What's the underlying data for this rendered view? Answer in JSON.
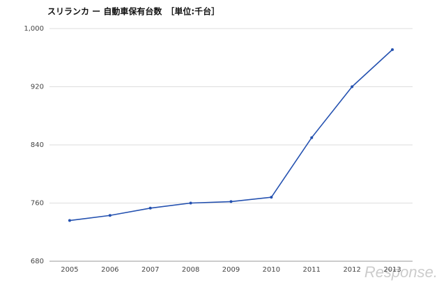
{
  "chart_data": {
    "type": "line",
    "title": "スリランカ ー 自動車保有台数　［単位:千台］",
    "categories": [
      "2005",
      "2006",
      "2007",
      "2008",
      "2009",
      "2010",
      "2011",
      "2012",
      "2013"
    ],
    "series": [
      {
        "name": "自動車保有台数",
        "color": "#2451b0",
        "values": [
          736,
          743,
          753,
          760,
          762,
          768,
          850,
          920,
          971
        ]
      }
    ],
    "ylim": [
      680,
      1000
    ],
    "yticks": [
      680,
      760,
      840,
      920,
      {
        "value": 1000,
        "label": "1,000"
      }
    ],
    "grid": true,
    "watermark": "Response."
  }
}
